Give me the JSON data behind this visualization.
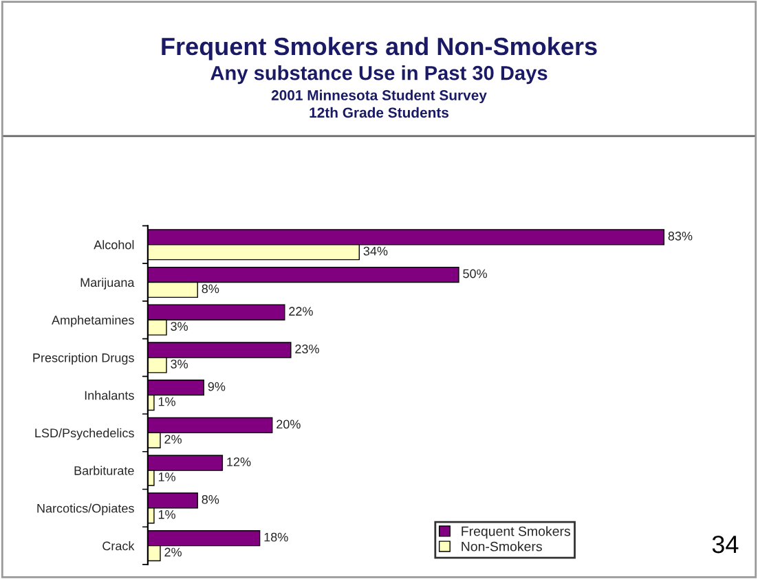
{
  "chart_data": {
    "type": "bar",
    "orientation": "horizontal",
    "title": "Frequent Smokers and Non-Smokers",
    "subtitle": "Any substance Use in Past 30 Days",
    "annotations": [
      "2001 Minnesota Student Survey",
      "12th Grade Students",
      "34"
    ],
    "categories": [
      "Alcohol",
      "Marijuana",
      "Amphetamines",
      "Prescription Drugs",
      "Inhalants",
      "LSD/Psychedelics",
      "Barbiturate",
      "Narcotics/Opiates",
      "Crack"
    ],
    "series": [
      {
        "name": "Frequent Smokers",
        "color": "#800080",
        "values": [
          83,
          50,
          22,
          23,
          9,
          20,
          12,
          8,
          18
        ],
        "value_labels": [
          "83%",
          "50%",
          "22%",
          "23%",
          "9%",
          "20%",
          "12%",
          "8%",
          "18%"
        ]
      },
      {
        "name": "Non-Smokers",
        "color": "#ffffc0",
        "values": [
          34,
          8,
          3,
          3,
          1,
          2,
          1,
          1,
          2
        ],
        "value_labels": [
          "34%",
          "8%",
          "3%",
          "3%",
          "1%",
          "2%",
          "1%",
          "1%",
          "2%"
        ]
      }
    ],
    "legend": "bottom right",
    "grid": false,
    "tick_labels": "y"
  }
}
